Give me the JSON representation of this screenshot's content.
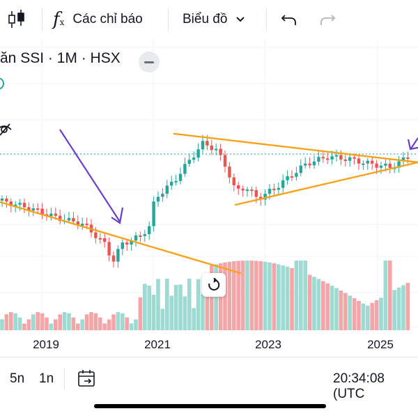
{
  "toolbar": {
    "indicators_label": "Các chỉ báo",
    "chart_label": "Biểu đồ",
    "icons": [
      "candlestick-icon",
      "function-icon",
      "chevron-down-icon",
      "undo-icon",
      "redo-icon"
    ]
  },
  "legend": {
    "title": "ăn SSI · 1M · HSX"
  },
  "chart_data": {
    "type": "candlestick",
    "x_tick_labels": [
      "2019",
      "2021",
      "2023",
      "2025"
    ],
    "colors": {
      "up": "#26a69a",
      "down": "#ef5350",
      "volume_up": "#9ed9d2",
      "volume_down": "#f5a5a8",
      "trendline": "#f7a21b",
      "arrow": "#6a3fc9",
      "price_line": "#26a69a"
    },
    "grid": true
  },
  "bottom_bar": {
    "range_5y": "5n",
    "range_1y": "1n",
    "time": "20:34:08 (UTC"
  }
}
